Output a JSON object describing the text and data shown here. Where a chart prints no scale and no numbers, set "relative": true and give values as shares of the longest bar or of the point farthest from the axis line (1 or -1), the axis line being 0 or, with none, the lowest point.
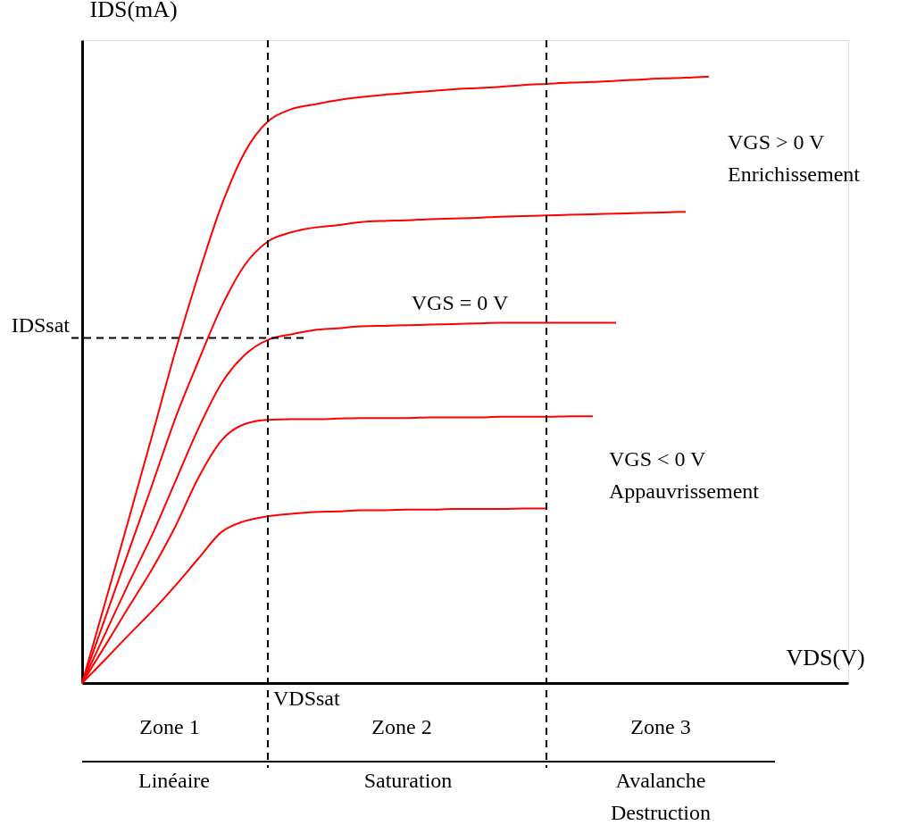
{
  "chart_data": {
    "type": "line",
    "relative": true,
    "xlabel": "VDS(V)",
    "ylabel": "IDS(mA)",
    "categories": [
      null,
      null,
      null,
      null,
      null,
      null,
      null,
      null,
      null,
      null,
      null,
      null,
      null,
      null,
      null,
      null,
      null,
      null,
      null,
      null,
      null,
      null,
      null,
      null,
      null,
      null,
      null,
      null,
      null,
      null,
      null,
      null,
      null,
      null
    ],
    "marker": "none",
    "line_style": "solid",
    "grid": false,
    "legend": false,
    "series": [
      {
        "color": "#ff0000",
        "values": [
          0,
          0.134,
          0.269,
          0.406,
          0.545,
          0.672,
          0.787,
          0.875,
          0.926,
          0.946,
          0.954,
          0.961,
          0.966,
          0.97,
          0.973,
          0.976,
          0.979,
          0.981,
          0.983,
          0.986,
          0.988,
          0.99,
          0.991,
          0.993,
          0.995,
          0.997,
          0.998,
          1.0,
          null,
          null,
          null,
          null,
          null,
          null
        ]
      },
      {
        "color": "#ff0000",
        "values": [
          0,
          0.108,
          0.217,
          0.325,
          0.435,
          0.53,
          0.62,
          0.689,
          0.728,
          0.743,
          0.751,
          0.755,
          0.76,
          0.762,
          0.763,
          0.765,
          0.766,
          0.767,
          0.769,
          0.77,
          0.771,
          0.772,
          0.773,
          0.774,
          0.775,
          0.776,
          0.777,
          null,
          null,
          null,
          null,
          null,
          null,
          null
        ]
      },
      {
        "color": "#ff0000",
        "values": [
          0,
          0.082,
          0.164,
          0.243,
          0.331,
          0.419,
          0.494,
          0.541,
          0.566,
          0.575,
          0.582,
          0.585,
          0.588,
          0.589,
          0.59,
          0.591,
          0.592,
          0.593,
          0.594,
          0.594,
          0.594,
          0.594,
          0.594,
          0.594,
          null,
          null,
          null,
          null,
          null,
          null,
          null,
          null,
          null,
          null
        ]
      },
      {
        "color": "#ff0000",
        "values": [
          0,
          0.062,
          0.125,
          0.187,
          0.257,
          0.338,
          0.4,
          0.427,
          0.434,
          0.435,
          0.435,
          0.436,
          0.437,
          0.437,
          0.437,
          0.438,
          0.438,
          0.438,
          0.439,
          0.439,
          0.439,
          0.44,
          0.44,
          null,
          null,
          null,
          null,
          null,
          null,
          null,
          null,
          null,
          null,
          null
        ]
      },
      {
        "color": "#ff0000",
        "values": [
          0,
          0.039,
          0.079,
          0.118,
          0.16,
          0.205,
          0.249,
          0.267,
          0.275,
          0.279,
          0.282,
          0.283,
          0.285,
          0.285,
          0.286,
          0.286,
          0.287,
          0.287,
          0.287,
          0.288,
          0.288,
          null,
          null,
          null,
          null,
          null,
          null,
          null,
          null,
          null,
          null,
          null,
          null,
          null
        ]
      }
    ],
    "ref_lines": [
      {
        "axis": "y",
        "value": 0.569,
        "label": "IDSsat",
        "color": "#000000",
        "line_style": "dashed"
      }
    ],
    "annotations": [
      "VGS > 0 V\nEnrichissement",
      "VGS = 0 V",
      "VGS < 0 V\nAppauvrissement",
      "VDSsat",
      "Zone 1",
      "Zone 2",
      "Zone 3",
      "Linéaire",
      "Saturation",
      "Avalanche\nDestruction"
    ]
  }
}
